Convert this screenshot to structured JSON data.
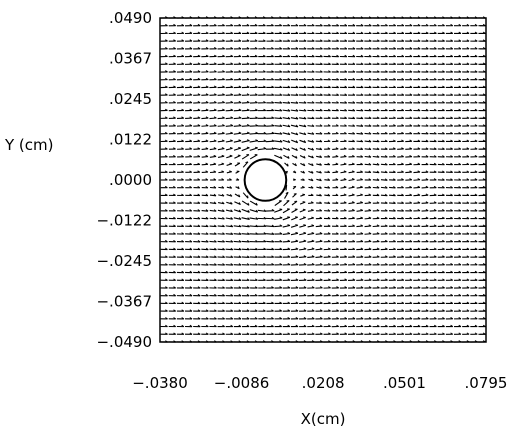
{
  "chart_data": {
    "type": "quiver",
    "title": "",
    "xlabel": "X(cm)",
    "ylabel": "Y (cm)",
    "xlim": [
      -0.038,
      0.0795
    ],
    "ylim": [
      -0.049,
      0.049
    ],
    "x_ticks": [
      {
        "value": -0.038,
        "label": "-.0380"
      },
      {
        "value": -0.0086,
        "label": "-.0086"
      },
      {
        "value": 0.0208,
        "label": ".0208"
      },
      {
        "value": 0.0501,
        "label": ".0501"
      },
      {
        "value": 0.0795,
        "label": ".0795"
      }
    ],
    "y_ticks": [
      {
        "value": 0.049,
        "label": ".0490"
      },
      {
        "value": 0.0367,
        "label": ".0367"
      },
      {
        "value": 0.0245,
        "label": ".0245"
      },
      {
        "value": 0.0122,
        "label": ".0122"
      },
      {
        "value": 0.0,
        "label": ".0000"
      },
      {
        "value": -0.0122,
        "label": "-.0122"
      },
      {
        "value": -0.0245,
        "label": "-.0245"
      },
      {
        "value": -0.0367,
        "label": "-.0367"
      },
      {
        "value": -0.049,
        "label": "-.0490"
      }
    ],
    "field": {
      "description": "Velocity vector field of flow around a circular cylinder; uniform flow in +x direction far from the obstacle, disturbed near it",
      "free_stream_direction": "+x",
      "grid_x_count": 40,
      "grid_y_count": 42,
      "vector_color": "#000000"
    },
    "obstacle": {
      "shape": "circle",
      "center": [
        0.0,
        0.0
      ],
      "radius": 0.0075,
      "fill": "#ffffff",
      "stroke": "#000000"
    },
    "grid": false,
    "legend": "none"
  }
}
